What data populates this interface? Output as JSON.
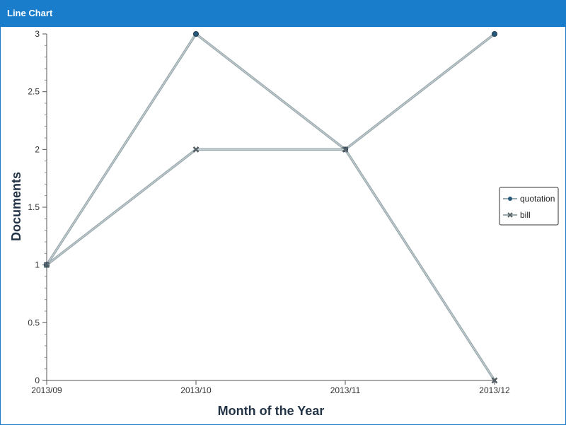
{
  "window": {
    "title": "Line Chart"
  },
  "chart_data": {
    "type": "line",
    "title": "",
    "xlabel": "Month of the Year",
    "ylabel": "Documents",
    "categories": [
      "2013/09",
      "2013/10",
      "2013/11",
      "2013/12"
    ],
    "yticks": [
      "0",
      "0.5",
      "1",
      "1.5",
      "2",
      "2.5",
      "3"
    ],
    "ylim": [
      0,
      3
    ],
    "grid": false,
    "legend_position": "right",
    "series": [
      {
        "name": "quotation",
        "values": [
          1,
          3,
          2,
          3
        ],
        "marker": "circle",
        "color": "#9aa9ae",
        "marker_color": "#2a5a7a"
      },
      {
        "name": "bill",
        "values": [
          1,
          2,
          2,
          0
        ],
        "marker": "x",
        "color": "#9aa9ae",
        "marker_color": "#555f66"
      }
    ]
  }
}
